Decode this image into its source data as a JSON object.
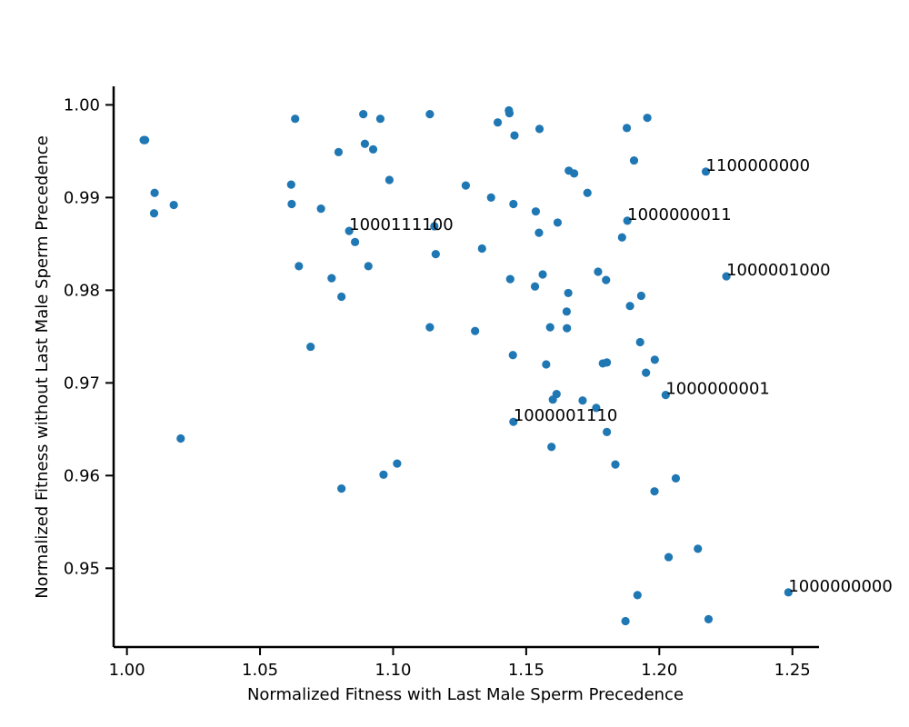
{
  "chart_data": {
    "type": "scatter",
    "xlabel": "Normalized Fitness with Last Male Sperm Precedence",
    "ylabel": "Normalized Fitness without Last Male Sperm Precedence",
    "xlim": [
      0.995,
      1.26
    ],
    "ylim": [
      0.9415,
      1.002
    ],
    "xticks": [
      1.0,
      1.05,
      1.1,
      1.15,
      1.2,
      1.25
    ],
    "xtick_labels": [
      "1.00",
      "1.05",
      "1.10",
      "1.15",
      "1.20",
      "1.25"
    ],
    "yticks": [
      0.95,
      0.96,
      0.97,
      0.98,
      0.99,
      1.0
    ],
    "ytick_labels": [
      "0.95",
      "0.96",
      "0.97",
      "0.98",
      "0.99",
      "1.00"
    ],
    "grid": false,
    "point_color": "#1f77b4",
    "points": [
      [
        1.0068,
        0.9962
      ],
      [
        1.0063,
        0.9962
      ],
      [
        1.0104,
        0.9905
      ],
      [
        1.0102,
        0.9883
      ],
      [
        1.0176,
        0.9892
      ],
      [
        1.0202,
        0.964
      ],
      [
        1.0632,
        0.9985
      ],
      [
        1.0617,
        0.9914
      ],
      [
        1.0619,
        0.9893
      ],
      [
        1.0646,
        0.9826
      ],
      [
        1.069,
        0.9739
      ],
      [
        1.0729,
        0.9888
      ],
      [
        1.0769,
        0.9813
      ],
      [
        1.0795,
        0.9949
      ],
      [
        1.0806,
        0.9793
      ],
      [
        1.0806,
        0.9586
      ],
      [
        1.0835,
        0.9864
      ],
      [
        1.0857,
        0.9852
      ],
      [
        1.0888,
        0.999
      ],
      [
        1.0894,
        0.9958
      ],
      [
        1.0907,
        0.9826
      ],
      [
        1.0925,
        0.9952
      ],
      [
        1.0952,
        0.9985
      ],
      [
        1.0964,
        0.9601
      ],
      [
        1.0986,
        0.9919
      ],
      [
        1.1015,
        0.9613
      ],
      [
        1.1138,
        0.999
      ],
      [
        1.1138,
        0.976
      ],
      [
        1.1155,
        0.9869
      ],
      [
        1.116,
        0.9839
      ],
      [
        1.1273,
        0.9913
      ],
      [
        1.1308,
        0.9756
      ],
      [
        1.1334,
        0.9845
      ],
      [
        1.1368,
        0.99
      ],
      [
        1.1393,
        0.9981
      ],
      [
        1.1435,
        0.9994
      ],
      [
        1.1437,
        0.9991
      ],
      [
        1.144,
        0.9812
      ],
      [
        1.145,
        0.973
      ],
      [
        1.1452,
        0.9893
      ],
      [
        1.1456,
        0.9967
      ],
      [
        1.1452,
        0.9658
      ],
      [
        1.1533,
        0.9804
      ],
      [
        1.1536,
        0.9885
      ],
      [
        1.1548,
        0.9862
      ],
      [
        1.155,
        0.9974
      ],
      [
        1.1562,
        0.9817
      ],
      [
        1.1575,
        0.972
      ],
      [
        1.159,
        0.976
      ],
      [
        1.1595,
        0.9631
      ],
      [
        1.16,
        0.9682
      ],
      [
        1.1614,
        0.9688
      ],
      [
        1.1618,
        0.9873
      ],
      [
        1.1652,
        0.9777
      ],
      [
        1.1653,
        0.9759
      ],
      [
        1.1658,
        0.9797
      ],
      [
        1.166,
        0.9929
      ],
      [
        1.168,
        0.9926
      ],
      [
        1.1712,
        0.9681
      ],
      [
        1.173,
        0.9905
      ],
      [
        1.1763,
        0.9673
      ],
      [
        1.177,
        0.982
      ],
      [
        1.1788,
        0.9721
      ],
      [
        1.18,
        0.9811
      ],
      [
        1.1803,
        0.9722
      ],
      [
        1.1803,
        0.9647
      ],
      [
        1.1835,
        0.9612
      ],
      [
        1.186,
        0.9857
      ],
      [
        1.1873,
        0.9443
      ],
      [
        1.1878,
        0.9975
      ],
      [
        1.188,
        0.9875
      ],
      [
        1.189,
        0.9783
      ],
      [
        1.1905,
        0.994
      ],
      [
        1.1918,
        0.9471
      ],
      [
        1.1928,
        0.9744
      ],
      [
        1.1932,
        0.9794
      ],
      [
        1.195,
        0.9711
      ],
      [
        1.1955,
        0.9986
      ],
      [
        1.1982,
        0.9583
      ],
      [
        1.1983,
        0.9725
      ],
      [
        1.2024,
        0.9687
      ],
      [
        1.2035,
        0.9512
      ],
      [
        1.2062,
        0.9597
      ],
      [
        1.2145,
        0.9521
      ],
      [
        1.2175,
        0.9928
      ],
      [
        1.2185,
        0.9445
      ],
      [
        1.2252,
        0.9815
      ],
      [
        1.2485,
        0.9474
      ]
    ],
    "annotations": [
      {
        "text": "1100000000",
        "x": 1.2175,
        "y": 0.9928
      },
      {
        "text": "1000000011",
        "x": 1.188,
        "y": 0.9875
      },
      {
        "text": "1000111100",
        "x": 1.0835,
        "y": 0.9864
      },
      {
        "text": "1000001000",
        "x": 1.2252,
        "y": 0.9815
      },
      {
        "text": "1000000001",
        "x": 1.2024,
        "y": 0.9687
      },
      {
        "text": "1000001110",
        "x": 1.1452,
        "y": 0.9658
      },
      {
        "text": "1000000000",
        "x": 1.2485,
        "y": 0.9474
      }
    ]
  }
}
